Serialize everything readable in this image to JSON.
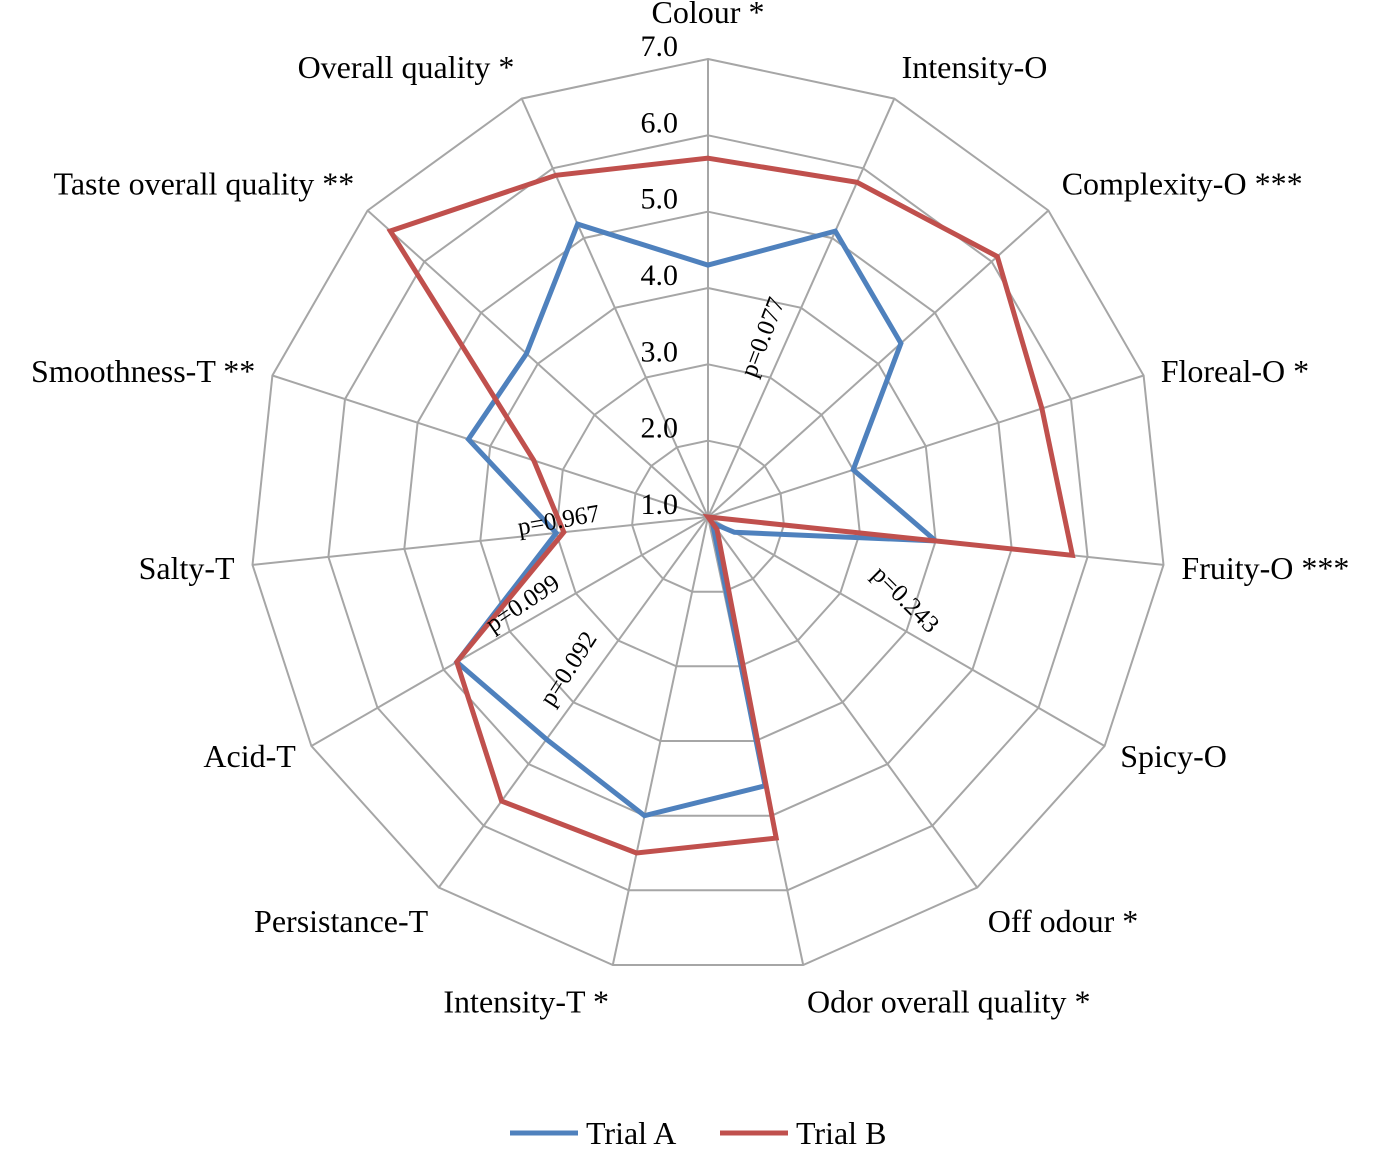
{
  "chart_data": {
    "type": "radar",
    "categories": [
      "Colour *",
      "Intensity-O",
      "Complexity-O ***",
      "Floreal-O *",
      "Fruity-O ***",
      "Spicy-O",
      "Off odour *",
      "Odor overall quality *",
      "Intensity-T *",
      "Persistance-T",
      "Acid-T",
      "Salty-T",
      "Smoothness-T **",
      "Taste overall quality **",
      "Overall quality *"
    ],
    "series": [
      {
        "name": "Trial A",
        "color": "#4f81bd",
        "values": [
          4.3,
          5.1,
          4.4,
          3.0,
          4.0,
          1.4,
          1.1,
          4.6,
          5.0,
          4.6,
          4.8,
          3.0,
          4.3,
          4.2,
          5.2
        ]
      },
      {
        "name": "Trial B",
        "color": "#c0504d",
        "values": [
          5.7,
          5.8,
          6.1,
          5.6,
          5.8,
          1.0,
          1.2,
          5.3,
          5.5,
          5.6,
          4.8,
          2.9,
          3.4,
          6.6,
          5.9
        ]
      }
    ],
    "axis": {
      "min": 1.0,
      "max": 7.0,
      "step": 1.0,
      "tick_labels": [
        "1.0",
        "2.0",
        "3.0",
        "4.0",
        "5.0",
        "6.0",
        "7.0"
      ]
    },
    "annotations": [
      "p=0.077",
      "p=0.243",
      "p=0.092",
      "p=0.099",
      "p=0.967"
    ],
    "grid": true,
    "legend_position": "bottom"
  }
}
